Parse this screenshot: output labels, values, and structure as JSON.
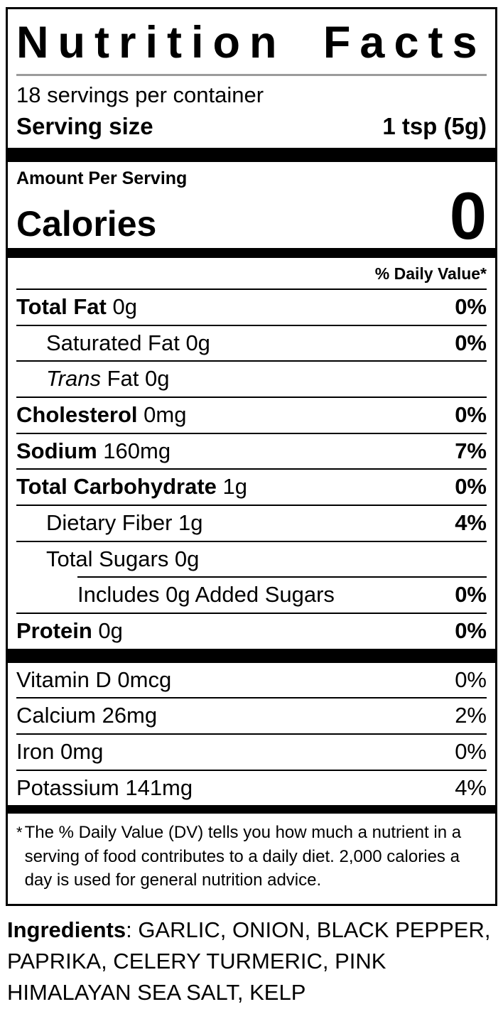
{
  "label": {
    "title": "Nutrition Facts",
    "servings_per_container": "18 servings per container",
    "serving_size_label": "Serving size",
    "serving_size_value": "1 tsp (5g)",
    "amount_per_serving": "Amount Per Serving",
    "calories_label": "Calories",
    "calories_value": "0",
    "daily_value_header": "% Daily Value*",
    "nutrients": [
      {
        "parts": [
          {
            "text": "Total Fat",
            "style": "bold"
          },
          {
            "text": " 0g"
          }
        ],
        "dv": "0%",
        "dv_bold": true,
        "indent": 0
      },
      {
        "parts": [
          {
            "text": "Saturated Fat 0g"
          }
        ],
        "dv": "0%",
        "dv_bold": true,
        "indent": 1
      },
      {
        "parts": [
          {
            "text": "Trans",
            "style": "italic"
          },
          {
            "text": " Fat 0g"
          }
        ],
        "dv": "",
        "dv_bold": false,
        "indent": 1
      },
      {
        "parts": [
          {
            "text": "Cholesterol",
            "style": "bold"
          },
          {
            "text": " 0mg"
          }
        ],
        "dv": "0%",
        "dv_bold": true,
        "indent": 0
      },
      {
        "parts": [
          {
            "text": "Sodium",
            "style": "bold"
          },
          {
            "text": " 160mg"
          }
        ],
        "dv": "7%",
        "dv_bold": true,
        "indent": 0
      },
      {
        "parts": [
          {
            "text": "Total Carbohydrate",
            "style": "bold"
          },
          {
            "text": " 1g"
          }
        ],
        "dv": "0%",
        "dv_bold": true,
        "indent": 0
      },
      {
        "parts": [
          {
            "text": "Dietary Fiber 1g"
          }
        ],
        "dv": "4%",
        "dv_bold": true,
        "indent": 1
      },
      {
        "parts": [
          {
            "text": "Total Sugars 0g"
          }
        ],
        "dv": "",
        "dv_bold": false,
        "indent": 1
      },
      {
        "parts": [
          {
            "text": "Includes 0g Added Sugars"
          }
        ],
        "dv": "0%",
        "dv_bold": true,
        "indent": 2
      },
      {
        "parts": [
          {
            "text": "Protein",
            "style": "bold"
          },
          {
            "text": " 0g"
          }
        ],
        "dv": "0%",
        "dv_bold": true,
        "indent": 0
      }
    ],
    "micronutrients": [
      {
        "parts": [
          {
            "text": "Vitamin D 0mcg"
          }
        ],
        "dv": "0%",
        "dv_bold": false
      },
      {
        "parts": [
          {
            "text": "Calcium 26mg"
          }
        ],
        "dv": "2%",
        "dv_bold": false
      },
      {
        "parts": [
          {
            "text": "Iron 0mg"
          }
        ],
        "dv": "0%",
        "dv_bold": false
      },
      {
        "parts": [
          {
            "text": "Potassium 141mg"
          }
        ],
        "dv": "4%",
        "dv_bold": false
      }
    ],
    "footnote_marker": "*",
    "footnote": "The % Daily Value (DV) tells you how much a nutrient in a serving of food contributes to a daily diet. 2,000 calories a day is used for general nutrition advice."
  },
  "ingredients": {
    "label": "Ingredients",
    "rest": ": GARLIC, ONION, BLACK PEPPER, PAPRIKA, CELERY TURMERIC, PINK HIMALAYAN SEA SALT, KELP"
  },
  "colors": {
    "text": "#000000",
    "background": "#ffffff",
    "rule": "#000000",
    "title_rule": "#9b9b9b"
  }
}
